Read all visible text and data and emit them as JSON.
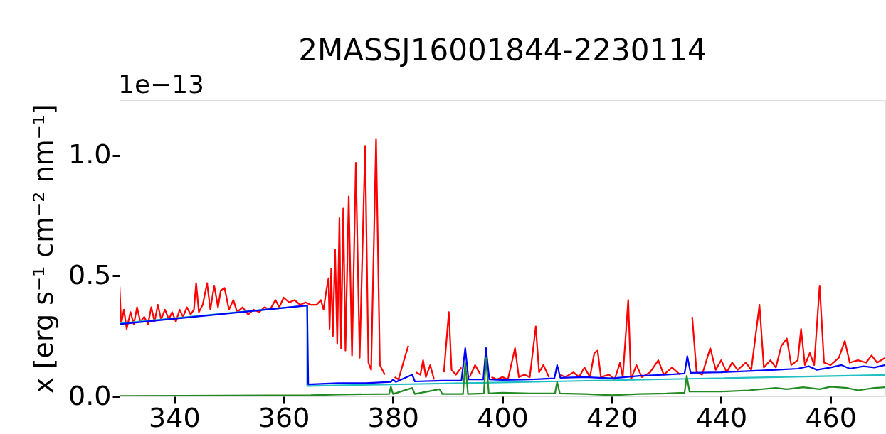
{
  "chart_data": {
    "type": "line",
    "title": "2MASSJ16001844-2230114",
    "ylabel": "x [erg s⁻¹ cm⁻² nm⁻¹]",
    "annotations": [
      "1e−13"
    ],
    "xlim": [
      330,
      470
    ],
    "xticks": [
      340,
      360,
      380,
      400,
      420,
      440,
      460
    ],
    "ylim": [
      0,
      1.23
    ],
    "yticks": [
      {
        "value": 0,
        "label": "0.0"
      },
      0.5,
      {
        "value": 1,
        "label": "1.0"
      }
    ],
    "grid": false,
    "marker": "none",
    "line_style": "solid",
    "series": [
      {
        "color": "#ff0000",
        "x": [
          330.0,
          330.3,
          330.8,
          331.3,
          332.0,
          332.6,
          333.2,
          333.8,
          334.5,
          335.2,
          335.8,
          336.4,
          337.0,
          337.6,
          338.3,
          339.0,
          339.6,
          340.3,
          341.0,
          341.6,
          342.3,
          343.0,
          343.6,
          344.0,
          344.5,
          345.2,
          346.0,
          346.6,
          347.3,
          348.0,
          348.5,
          349.2,
          350.0,
          350.8,
          351.5,
          352.5,
          353.5,
          354.5,
          355.5,
          356.5,
          357.5,
          358.5,
          359.2,
          360.0,
          361.0,
          362.0,
          363.0,
          364.0,
          365.0,
          366.0,
          366.8,
          367.3,
          367.8,
          368.2,
          368.4,
          368.7,
          369.0,
          369.4,
          369.8,
          370.2,
          370.5,
          370.9,
          371.3,
          371.9,
          372.5,
          373.2,
          373.9,
          374.9,
          375.5,
          376.0,
          376.9,
          377.6,
          378.5,
          379.6,
          380.3,
          381.0,
          382.0,
          382.8,
          383.5,
          384.2,
          385.0,
          385.5,
          386.0,
          386.8,
          387.5,
          388.5,
          389.3,
          390.2,
          390.7,
          391.5,
          392.5,
          393.2,
          394.0,
          395.0,
          396.0,
          396.7,
          397.3,
          398.0,
          399.0,
          400.0,
          401.0,
          402.3,
          403.0,
          404.0,
          405.0,
          406.1,
          406.7,
          407.5,
          408.5,
          409.9,
          410.6,
          411.5,
          413.0,
          414.0,
          415.0,
          416.0,
          416.8,
          417.4,
          418.0,
          419.5,
          420.5,
          421.5,
          422.0,
          423.0,
          423.5,
          424.5,
          425.5,
          427.0,
          428.5,
          429.5,
          431.0,
          432.5,
          433.6,
          434.7,
          435.5,
          436.5,
          438.0,
          439.0,
          440.0,
          441.0,
          442.0,
          443.0,
          444.5,
          445.5,
          447.0,
          447.8,
          449.0,
          450.0,
          451.0,
          452.0,
          452.8,
          454.0,
          454.6,
          455.3,
          456.2,
          457.0,
          458.0,
          458.8,
          460.0,
          461.5,
          462.6,
          463.5,
          465.0,
          466.5,
          467.5,
          468.5,
          470.0
        ],
        "values": [
          0.46,
          0.3,
          0.36,
          0.28,
          0.35,
          0.3,
          0.37,
          0.31,
          0.33,
          0.3,
          0.37,
          0.31,
          0.38,
          0.32,
          0.36,
          0.32,
          0.35,
          0.31,
          0.36,
          0.33,
          0.37,
          0.34,
          0.36,
          0.47,
          0.35,
          0.38,
          0.47,
          0.36,
          0.46,
          0.37,
          0.44,
          0.45,
          0.36,
          0.4,
          0.35,
          0.37,
          0.34,
          0.36,
          0.35,
          0.37,
          0.36,
          0.4,
          0.37,
          0.41,
          0.39,
          0.4,
          0.38,
          0.39,
          0.38,
          0.38,
          0.4,
          0.36,
          0.44,
          0.49,
          0.28,
          0.53,
          0.25,
          0.61,
          0.22,
          0.74,
          0.2,
          0.78,
          0.19,
          0.83,
          0.17,
          0.97,
          0.16,
          1.04,
          0.14,
          0.11,
          1.07,
          0.13,
          0.09,
          null,
          0.08,
          0.07,
          0.15,
          0.21,
          null,
          0.1,
          0.09,
          0.15,
          0.08,
          0.13,
          0.07,
          null,
          0.1,
          0.35,
          0.11,
          0.09,
          0.12,
          null,
          0.08,
          0.13,
          0.09,
          null,
          null,
          0.08,
          0.07,
          0.08,
          0.07,
          0.2,
          0.08,
          0.09,
          0.08,
          0.29,
          0.1,
          0.13,
          0.08,
          null,
          0.09,
          0.08,
          0.1,
          0.08,
          0.12,
          0.08,
          0.18,
          0.19,
          0.08,
          0.09,
          0.07,
          0.14,
          0.08,
          0.4,
          0.07,
          0.13,
          0.08,
          0.1,
          0.15,
          0.09,
          0.12,
          0.09,
          null,
          0.33,
          0.1,
          0.09,
          0.2,
          0.11,
          0.15,
          0.1,
          0.14,
          0.11,
          0.14,
          0.11,
          0.38,
          0.12,
          0.15,
          0.12,
          0.21,
          0.24,
          0.13,
          0.15,
          0.28,
          0.13,
          0.18,
          0.13,
          0.46,
          0.14,
          0.13,
          0.16,
          0.23,
          0.14,
          0.15,
          0.14,
          0.17,
          0.14,
          0.16
        ]
      },
      {
        "color": "#1fbfc4",
        "x": [
          330,
          364.3,
          364.3,
          400,
          470
        ],
        "values": [
          0.303,
          0.377,
          0.043,
          0.058,
          0.089
        ]
      },
      {
        "color": "#0000ff",
        "x": [
          330,
          364.3,
          364.5,
          370,
          375,
          379.6,
          380,
          380.5,
          383.5,
          384,
          389,
          392.5,
          393.2,
          393.8,
          396.5,
          397,
          397.6,
          400,
          405,
          409.5,
          410,
          410.6,
          415,
          420,
          425,
          430,
          433.3,
          433.8,
          434.4,
          440,
          445,
          450,
          454,
          456,
          457.5,
          460,
          462,
          463.5,
          466,
          468,
          470
        ],
        "values": [
          0.3,
          0.377,
          0.05,
          0.055,
          0.055,
          0.06,
          0.07,
          0.06,
          0.09,
          0.062,
          0.065,
          0.065,
          0.2,
          0.07,
          0.07,
          0.2,
          0.07,
          0.068,
          0.07,
          0.075,
          0.13,
          0.077,
          0.08,
          0.075,
          0.085,
          0.09,
          0.095,
          0.167,
          0.098,
          0.1,
          0.105,
          0.11,
          0.115,
          0.125,
          0.11,
          0.12,
          0.13,
          0.115,
          0.125,
          0.12,
          0.13
        ]
      },
      {
        "color": "#228b22",
        "x": [
          330,
          365,
          370,
          379.3,
          379.6,
          380,
          383.5,
          384,
          388.5,
          389,
          392.8,
          393.2,
          393.7,
          396.6,
          397,
          397.5,
          400,
          405,
          409.6,
          410,
          410.5,
          415,
          420,
          425,
          430,
          433.3,
          433.7,
          434.2,
          440,
          445,
          450,
          452,
          455,
          458,
          460,
          463,
          465,
          468,
          470
        ],
        "values": [
          0.002,
          0.005,
          0.008,
          0.01,
          0.04,
          0.01,
          0.035,
          0.01,
          0.03,
          0.01,
          0.01,
          0.14,
          0.01,
          0.012,
          0.16,
          0.012,
          0.015,
          0.012,
          0.012,
          0.06,
          0.012,
          0.01,
          0.005,
          0.01,
          0.012,
          0.015,
          0.085,
          0.02,
          0.02,
          0.025,
          0.035,
          0.03,
          0.038,
          0.03,
          0.04,
          0.035,
          0.025,
          0.035,
          0.038
        ]
      }
    ]
  }
}
